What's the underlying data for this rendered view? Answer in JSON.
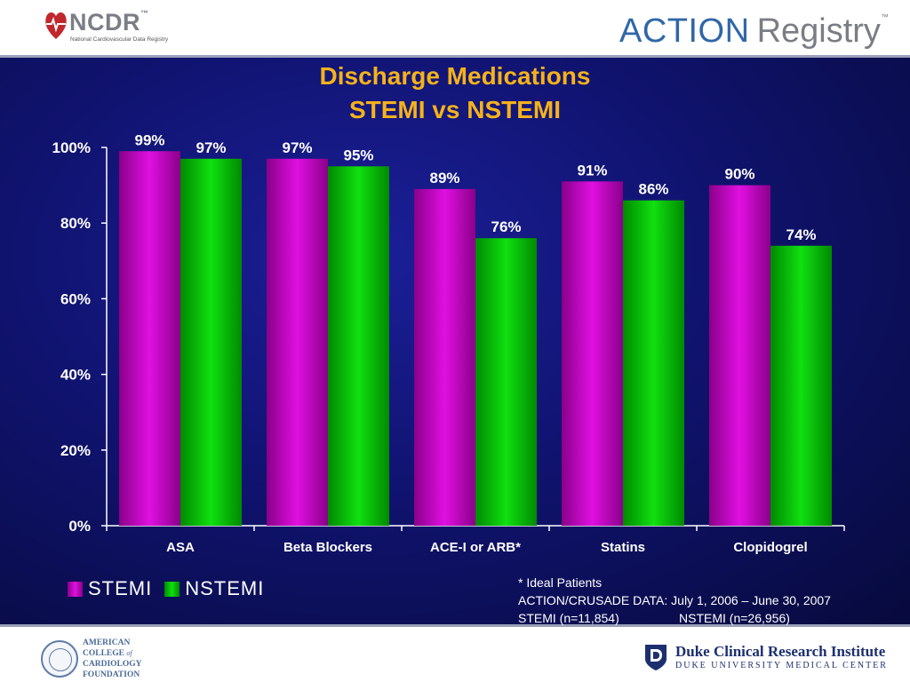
{
  "header": {
    "ncdr_logo": {
      "name": "NCDR",
      "tm": "™",
      "subtitle": "National Cardiovascular Data Registry"
    },
    "action_logo": {
      "word1": "ACTION",
      "word2": "Registry",
      "tm": "™"
    }
  },
  "title": {
    "line1": "Discharge Medications",
    "line2": "STEMI vs NSTEMI"
  },
  "chart_data": {
    "type": "bar",
    "categories": [
      "ASA",
      "Beta Blockers",
      "ACE-I or ARB*",
      "Statins",
      "Clopidogrel"
    ],
    "series": [
      {
        "name": "STEMI",
        "values": [
          99,
          97,
          89,
          91,
          90
        ],
        "color": "#e010e0",
        "value_labels": [
          "99%",
          "97%",
          "89%",
          "91%",
          "90%"
        ]
      },
      {
        "name": "NSTEMI",
        "values": [
          97,
          95,
          76,
          86,
          74
        ],
        "color": "#10e010",
        "value_labels": [
          "97%",
          "95%",
          "76%",
          "86%",
          "74%"
        ]
      }
    ],
    "ylim": [
      0,
      100
    ],
    "yticks": [
      0,
      20,
      40,
      60,
      80,
      100
    ],
    "ytick_labels": [
      "0%",
      "20%",
      "40%",
      "60%",
      "80%",
      "100%"
    ],
    "legend_position": "bottom-left",
    "grid": false
  },
  "footnote": {
    "line1": "* Ideal Patients",
    "line2": "ACTION/CRUSADE DATA: July 1, 2006 – June 30, 2007",
    "line3a": "STEMI (n=11,854)",
    "line3b": "NSTEMI (n=26,956)"
  },
  "footer": {
    "acc_logo": {
      "line1": "AMERICAN",
      "line2": "COLLEGE",
      "line2b": "of",
      "line3": "CARDIOLOGY",
      "line4": "FOUNDATION"
    },
    "duke_logo": {
      "line1": "Duke Clinical Research Institute",
      "line2": "DUKE UNIVERSITY MEDICAL CENTER"
    }
  },
  "colors": {
    "title": "#f5b21b",
    "background": "#10136f",
    "stemi": "#e010e0",
    "nstemi": "#10e010"
  }
}
